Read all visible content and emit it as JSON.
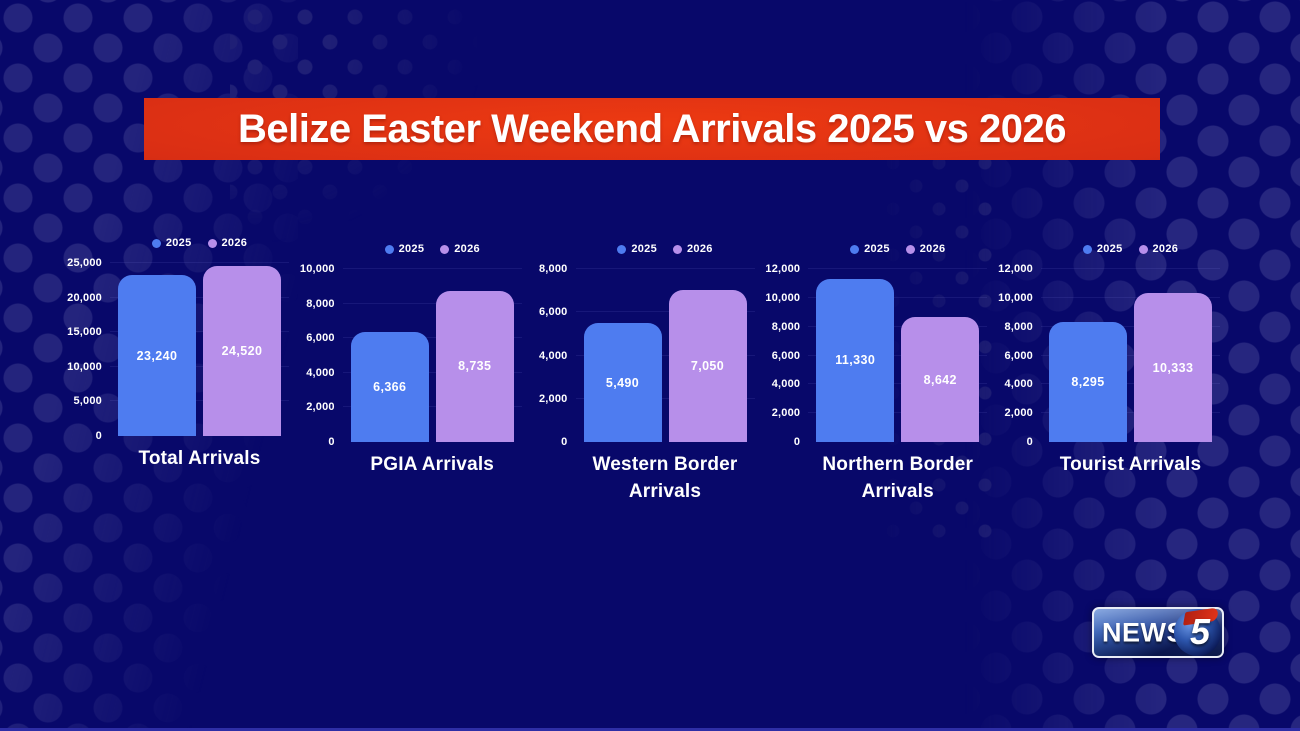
{
  "title": "Belize Easter Weekend Arrivals 2025 vs 2026",
  "colors": {
    "background": "#08086a",
    "banner_red": "#d92e14",
    "bar_2025": "#4e7cf0",
    "bar_2026": "#b78fea"
  },
  "legend": [
    {
      "label": "2025",
      "color": "#4e7cf0"
    },
    {
      "label": "2026",
      "color": "#b78fea"
    }
  ],
  "chart_data": [
    {
      "type": "bar",
      "title": "Total Arrivals",
      "categories": [
        "2025",
        "2026"
      ],
      "values": [
        23240,
        24520
      ],
      "value_labels": [
        "23,240",
        "24,520"
      ],
      "ylim": [
        0,
        25000
      ],
      "ymax": 25000,
      "yticks": [
        0,
        5000,
        10000,
        15000,
        20000,
        25000
      ],
      "ytick_labels": [
        "0",
        "5,000",
        "10,000",
        "15,000",
        "20,000",
        "25,000"
      ],
      "legend_position": "top",
      "grid": "subtle-horizontal"
    },
    {
      "type": "bar",
      "title": "PGIA Arrivals",
      "categories": [
        "2025",
        "2026"
      ],
      "values": [
        6366,
        8735
      ],
      "value_labels": [
        "6,366",
        "8,735"
      ],
      "ylim": [
        0,
        10000
      ],
      "ymax": 10000,
      "yticks": [
        0,
        2000,
        4000,
        6000,
        8000,
        10000
      ],
      "ytick_labels": [
        "0",
        "2,000",
        "4,000",
        "6,000",
        "8,000",
        "10,000"
      ],
      "legend_position": "top",
      "grid": "subtle-horizontal"
    },
    {
      "type": "bar",
      "title": "Western Border Arrivals",
      "categories": [
        "2025",
        "2026"
      ],
      "values": [
        5490,
        7050
      ],
      "value_labels": [
        "5,490",
        "7,050"
      ],
      "ylim": [
        0,
        8000
      ],
      "ymax": 8000,
      "yticks": [
        0,
        2000,
        4000,
        6000,
        8000
      ],
      "ytick_labels": [
        "0",
        "2,000",
        "4,000",
        "6,000",
        "8,000"
      ],
      "legend_position": "top",
      "grid": "subtle-horizontal"
    },
    {
      "type": "bar",
      "title": "Northern Border Arrivals",
      "categories": [
        "2025",
        "2026"
      ],
      "values": [
        11330,
        8642
      ],
      "value_labels": [
        "11,330",
        "8,642"
      ],
      "ylim": [
        0,
        12000
      ],
      "ymax": 12000,
      "yticks": [
        0,
        2000,
        4000,
        6000,
        8000,
        10000,
        12000
      ],
      "ytick_labels": [
        "0",
        "2,000",
        "4,000",
        "6,000",
        "8,000",
        "10,000",
        "12,000"
      ],
      "legend_position": "top",
      "grid": "subtle-horizontal"
    },
    {
      "type": "bar",
      "title": "Tourist Arrivals",
      "categories": [
        "2025",
        "2026"
      ],
      "values": [
        8295,
        10333
      ],
      "value_labels": [
        "8,295",
        "10,333"
      ],
      "ylim": [
        0,
        12000
      ],
      "ymax": 12000,
      "yticks": [
        0,
        2000,
        4000,
        6000,
        8000,
        10000,
        12000
      ],
      "ytick_labels": [
        "0",
        "2,000",
        "4,000",
        "6,000",
        "8,000",
        "10,000",
        "12,000"
      ],
      "legend_position": "top",
      "grid": "subtle-horizontal"
    }
  ],
  "logo": {
    "news": "NEWS",
    "five": "5"
  }
}
